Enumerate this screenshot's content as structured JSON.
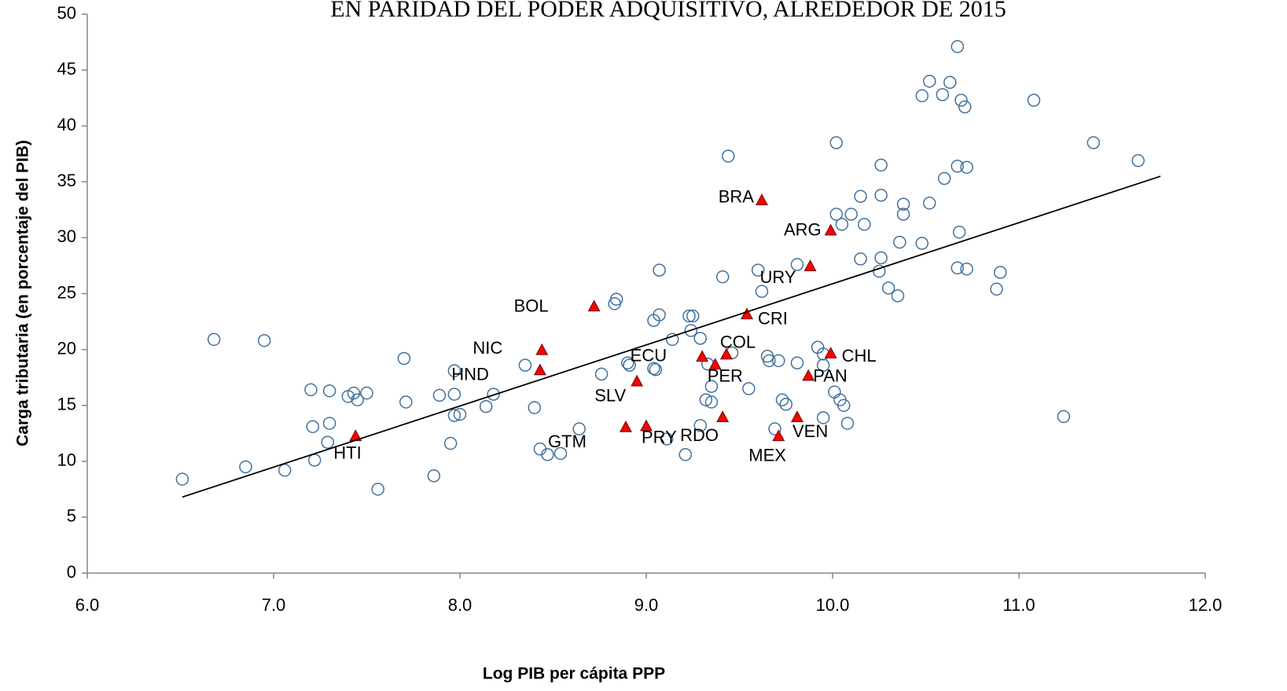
{
  "chart_data": {
    "type": "scatter",
    "title": "EN PARIDAD DEL PODER ADQUISITIVO, ALREDEDOR DE 2015",
    "x_label": "Log PIB per cápita PPP",
    "y_label": "Carga tributaria (en porcentaje del PIB)",
    "xlim": [
      6,
      12
    ],
    "ylim": [
      0,
      50
    ],
    "xticks": [
      {
        "value": 6,
        "label": "6.0"
      },
      {
        "value": 7,
        "label": "7.0"
      },
      {
        "value": 8,
        "label": "8.0"
      },
      {
        "value": 9,
        "label": "9.0"
      },
      {
        "value": 10,
        "label": "10.0"
      },
      {
        "value": 11,
        "label": "11.0"
      },
      {
        "value": 12,
        "label": "12.0"
      }
    ],
    "yticks": [
      0,
      5,
      10,
      15,
      20,
      25,
      30,
      35,
      40,
      45,
      50
    ],
    "grid": false,
    "series": [
      {
        "marker": "circle",
        "color": "#41719c",
        "x": [
          6.51,
          6.68,
          6.85,
          6.95,
          7.06,
          7.2,
          7.21,
          7.22,
          7.3,
          7.3,
          7.29,
          7.4,
          7.43,
          7.45,
          7.5,
          7.56,
          7.7,
          7.71,
          7.86,
          7.89,
          7.95,
          7.97,
          7.97,
          7.97,
          8.0,
          8.14,
          8.18,
          8.35,
          8.4,
          8.43,
          8.47,
          8.54,
          8.64,
          8.76,
          8.83,
          8.84,
          8.9,
          8.91,
          9.04,
          9.04,
          9.05,
          9.07,
          9.07,
          9.11,
          9.14,
          9.21,
          9.23,
          9.25,
          9.24,
          9.29,
          9.29,
          9.32,
          9.33,
          9.35,
          9.35,
          9.41,
          9.44,
          9.46,
          9.55,
          9.6,
          9.62,
          9.65,
          9.66,
          9.69,
          9.71,
          9.73,
          9.75,
          9.81,
          9.81,
          9.92,
          9.95,
          9.95,
          9.95,
          10.01,
          10.02,
          10.02,
          10.04,
          10.05,
          10.06,
          10.08,
          10.1,
          10.15,
          10.15,
          10.17,
          10.25,
          10.26,
          10.26,
          10.26,
          10.3,
          10.35,
          10.36,
          10.38,
          10.38,
          10.48,
          10.48,
          10.52,
          10.52,
          10.59,
          10.6,
          10.63,
          10.67,
          10.67,
          10.67,
          10.68,
          10.69,
          10.71,
          10.72,
          10.72,
          10.88,
          10.9,
          11.08,
          11.24,
          11.4,
          11.64
        ],
        "values": [
          8.4,
          20.9,
          9.5,
          20.8,
          9.2,
          16.4,
          13.1,
          10.1,
          16.3,
          13.4,
          11.7,
          15.8,
          16.1,
          15.5,
          16.1,
          7.5,
          19.2,
          15.3,
          8.7,
          15.9,
          11.6,
          14.1,
          18.1,
          16.0,
          14.2,
          14.9,
          16.0,
          18.6,
          14.8,
          11.1,
          10.6,
          10.7,
          12.9,
          17.8,
          24.1,
          24.5,
          18.8,
          18.6,
          22.6,
          18.3,
          18.2,
          23.1,
          27.1,
          12.0,
          20.9,
          10.6,
          23.0,
          23.0,
          21.7,
          21.0,
          13.2,
          15.5,
          18.7,
          16.7,
          15.3,
          26.5,
          37.3,
          19.7,
          16.5,
          27.1,
          25.2,
          19.4,
          19.0,
          12.9,
          19.0,
          15.5,
          15.1,
          27.6,
          18.8,
          20.2,
          18.6,
          19.6,
          13.9,
          16.2,
          38.5,
          32.1,
          15.5,
          31.2,
          15.0,
          13.4,
          32.1,
          33.7,
          28.1,
          31.2,
          27.0,
          36.5,
          33.8,
          28.2,
          25.5,
          24.8,
          29.6,
          33.0,
          32.1,
          29.5,
          42.7,
          33.1,
          44.0,
          42.8,
          35.3,
          43.9,
          47.1,
          27.3,
          36.4,
          30.5,
          42.3,
          41.7,
          36.3,
          27.2,
          25.4,
          26.9,
          42.3,
          14.0,
          38.5,
          36.9
        ]
      },
      {
        "marker": "triangle",
        "color": "#ff0000",
        "labels": [
          "BRA",
          "ARG",
          "URY",
          "BOL",
          "CRI",
          "NIC",
          "HND",
          "COL",
          "ECU",
          "PER",
          "CHL",
          "PAN",
          "SLV",
          "GTM",
          "PRY",
          "RDO",
          "VEN",
          "MEX",
          "HTI"
        ],
        "x": [
          9.62,
          9.99,
          9.88,
          8.72,
          9.54,
          8.44,
          8.43,
          9.43,
          9.3,
          9.37,
          9.99,
          9.87,
          8.95,
          8.89,
          9.0,
          9.41,
          9.81,
          9.71,
          7.44
        ],
        "values": [
          33.3,
          30.6,
          27.4,
          23.8,
          23.1,
          19.9,
          18.1,
          19.5,
          19.3,
          18.6,
          19.6,
          17.6,
          17.1,
          13.0,
          13.1,
          13.9,
          13.9,
          12.2,
          12.2
        ]
      }
    ],
    "trendline": {
      "color": "#000000",
      "x": [
        6.51,
        11.76
      ],
      "values": [
        6.8,
        35.5
      ]
    }
  }
}
